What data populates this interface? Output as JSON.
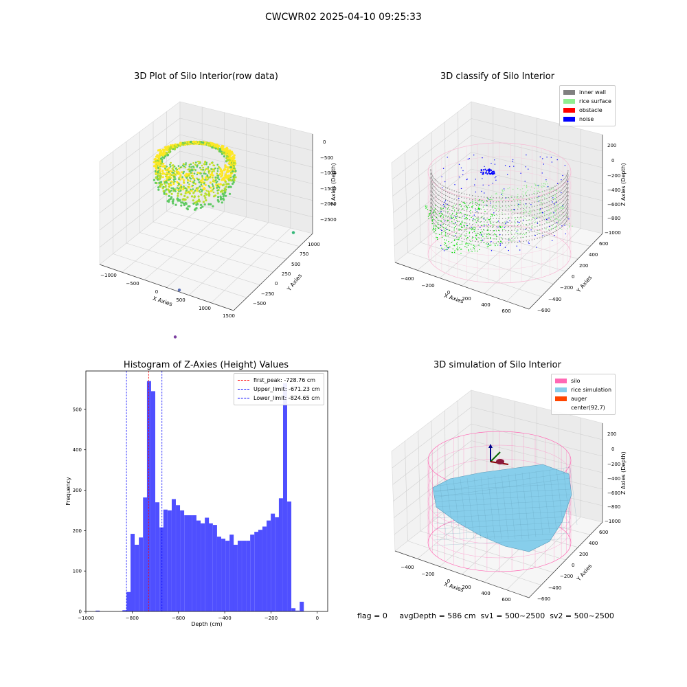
{
  "suptitle": "CWCWR02 2025-04-10 09:25:33",
  "footer_text": "flag = 0     avgDepth = 586 cm  sv1 = 500~2500  sv2 = 500~2500",
  "chart_data": [
    {
      "type": "scatter",
      "title": "3D Plot of Silo Interior(row data)",
      "xlabel": "X Axies",
      "ylabel": "Y Axies",
      "zlabel": "Z Axies (Depth)",
      "x_ticks": [
        "−1000",
        "−500",
        "0",
        "500",
        "1000",
        "1500"
      ],
      "y_ticks": [
        "−500",
        "−250",
        "0",
        "250",
        "500",
        "750",
        "1000"
      ],
      "z_ticks": [
        "0",
        "−500",
        "−1000",
        "−1500",
        "−2000",
        "−2500"
      ],
      "colormap": [
        "#fde725",
        "#5ec962",
        "#21918c",
        "#3b528b",
        "#440154"
      ],
      "outliers": [
        {
          "x": 1300,
          "y": 900,
          "z": -2300,
          "color": "#35b779"
        },
        {
          "x": 300,
          "y": 100,
          "z": -2500,
          "color": "#5b6fb5"
        },
        {
          "x": 900,
          "y": -300,
          "z": -2600,
          "color": "#7b3fa0"
        }
      ]
    },
    {
      "type": "scatter",
      "title": "3D classify of Silo Interior",
      "xlabel": "X Axies",
      "ylabel": "Y Axies",
      "zlabel": "Z Axies (Depth)",
      "x_ticks": [
        "−400",
        "−200",
        "0",
        "200",
        "400",
        "600"
      ],
      "y_ticks": [
        "−600",
        "−400",
        "−200",
        "0",
        "200",
        "400",
        "600"
      ],
      "z_ticks": [
        "200",
        "0",
        "−200",
        "−400",
        "−600",
        "−800",
        "−1000"
      ],
      "legend": [
        {
          "label": "inner wall",
          "color": "#808080"
        },
        {
          "label": "rice surface",
          "color": "#90ee90"
        },
        {
          "label": "obstacle",
          "color": "#ff0000"
        },
        {
          "label": "noise",
          "color": "#0000ff"
        }
      ]
    },
    {
      "type": "bar",
      "title": "Histogram of Z-Axies (Height) Values",
      "xlabel": "Depth (cm)",
      "ylabel": "Frequency",
      "xlim": [
        -1000,
        45
      ],
      "ylim": [
        0,
        595
      ],
      "x_ticks": [
        -1000,
        -800,
        -600,
        -400,
        -200,
        0
      ],
      "y_ticks": [
        0,
        100,
        200,
        300,
        400,
        500
      ],
      "bar_color": "#4b4bff",
      "bin_width": 17.8,
      "bins": [
        [
          -958,
          2
        ],
        [
          -842,
          3
        ],
        [
          -824,
          48
        ],
        [
          -807,
          192
        ],
        [
          -789,
          165
        ],
        [
          -771,
          183
        ],
        [
          -753,
          282
        ],
        [
          -736,
          570
        ],
        [
          -718,
          545
        ],
        [
          -700,
          270
        ],
        [
          -682,
          208
        ],
        [
          -665,
          252
        ],
        [
          -647,
          250
        ],
        [
          -629,
          278
        ],
        [
          -611,
          263
        ],
        [
          -593,
          250
        ],
        [
          -575,
          238
        ],
        [
          -558,
          238
        ],
        [
          -540,
          238
        ],
        [
          -522,
          225
        ],
        [
          -504,
          218
        ],
        [
          -486,
          232
        ],
        [
          -469,
          218
        ],
        [
          -451,
          214
        ],
        [
          -433,
          185
        ],
        [
          -415,
          180
        ],
        [
          -397,
          175
        ],
        [
          -379,
          190
        ],
        [
          -362,
          165
        ],
        [
          -344,
          175
        ],
        [
          -326,
          175
        ],
        [
          -308,
          175
        ],
        [
          -290,
          190
        ],
        [
          -272,
          197
        ],
        [
          -255,
          202
        ],
        [
          -237,
          210
        ],
        [
          -219,
          225
        ],
        [
          -201,
          242
        ],
        [
          -183,
          233
        ],
        [
          -166,
          280
        ],
        [
          -148,
          565
        ],
        [
          -130,
          272
        ],
        [
          -112,
          8
        ],
        [
          -94,
          2
        ],
        [
          -76,
          24
        ]
      ],
      "vlines": [
        {
          "label": "first_peak: -728.76 cm",
          "x": -728.76,
          "color": "#ff0000"
        },
        {
          "label": "Upper_limit: -671.23 cm",
          "x": -671.23,
          "color": "#0000ff"
        },
        {
          "label": "Lower_limit: -824.65 cm",
          "x": -824.65,
          "color": "#0000ff"
        }
      ]
    },
    {
      "type": "area",
      "title": "3D simulation of Silo Interior",
      "xlabel": "X Axies",
      "ylabel": "Y Axies",
      "zlabel": "Z Axies (Depth)",
      "x_ticks": [
        "−400",
        "−200",
        "0",
        "200",
        "400",
        "600"
      ],
      "y_ticks": [
        "−600",
        "−400",
        "−200",
        "0",
        "200",
        "400",
        "600"
      ],
      "z_ticks": [
        "200",
        "0",
        "−200",
        "−400",
        "−600",
        "−800",
        "−1000"
      ],
      "legend": [
        {
          "label": "silo",
          "color": "#ff69b4"
        },
        {
          "label": "rice simulation",
          "color": "#87ceeb"
        },
        {
          "label": "auger",
          "color": "#ff4500"
        },
        {
          "label": "center(92,7)",
          "color": ""
        }
      ]
    }
  ]
}
